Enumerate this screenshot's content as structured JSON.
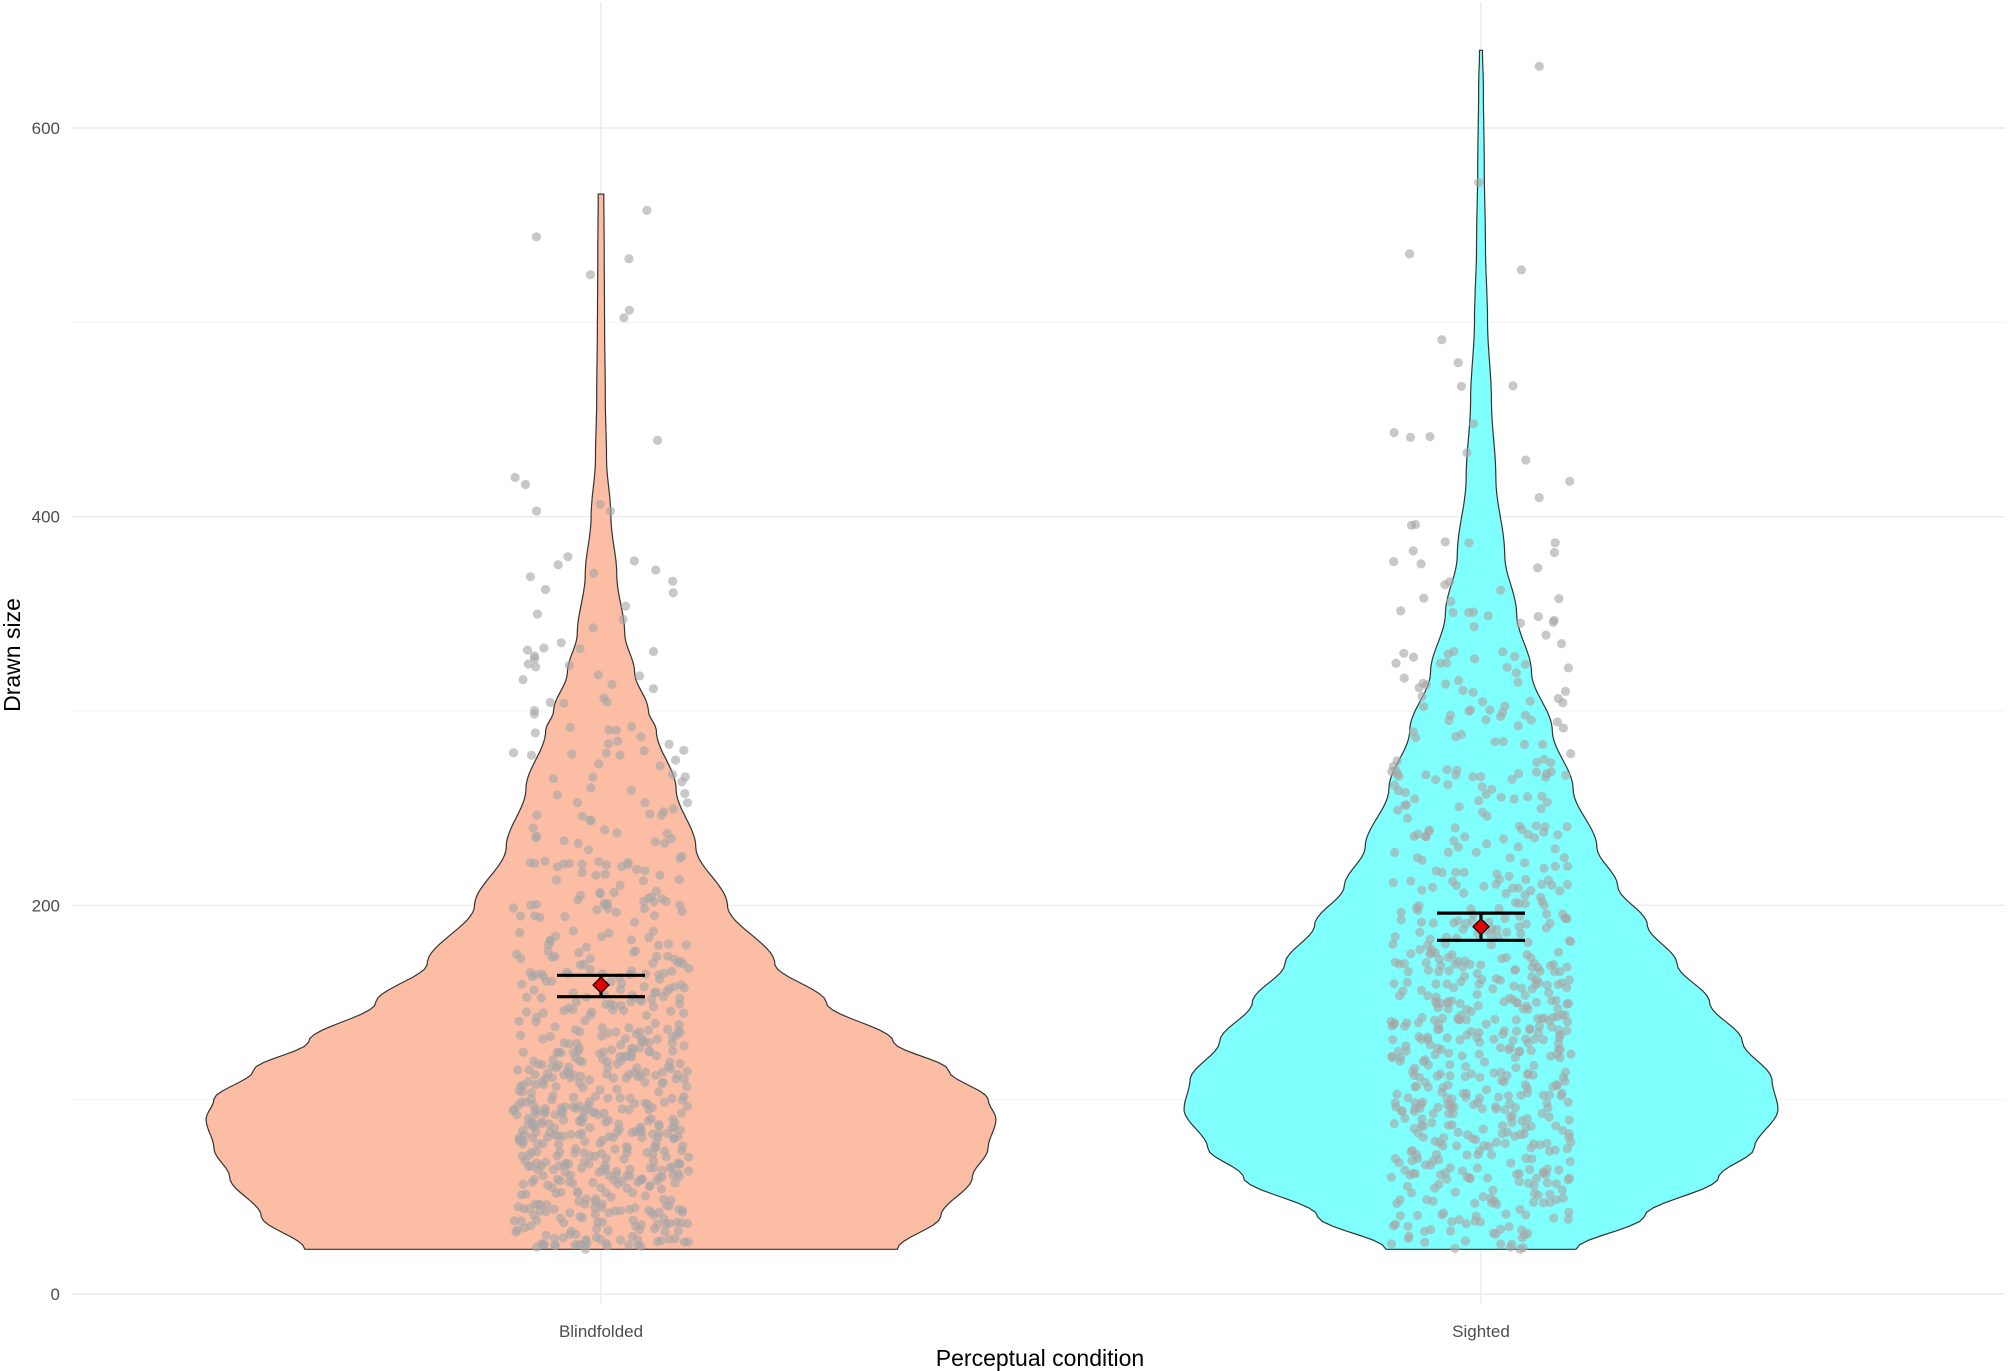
{
  "chart_data": {
    "type": "violin",
    "xlabel": "Perceptual condition",
    "ylabel": "Drawn size",
    "categories": [
      "Blindfolded",
      "Sighted"
    ],
    "ylim": [
      0,
      640
    ],
    "yticks": [
      0,
      200,
      400,
      600
    ],
    "grid": true,
    "colors": {
      "Blindfolded": "#fcbda5",
      "Sighted": "#80ffff",
      "points": "#a6a6a6",
      "mean": "#e00000"
    },
    "series": [
      {
        "category": "Blindfolded",
        "min": 23,
        "max": 566,
        "mean": 159,
        "ci_low": 153,
        "ci_high": 164,
        "density": [
          [
            23,
            0.75
          ],
          [
            40,
            0.86
          ],
          [
            60,
            0.94
          ],
          [
            75,
            0.98
          ],
          [
            90,
            1.0
          ],
          [
            100,
            0.98
          ],
          [
            115,
            0.88
          ],
          [
            130,
            0.74
          ],
          [
            150,
            0.57
          ],
          [
            170,
            0.44
          ],
          [
            200,
            0.32
          ],
          [
            230,
            0.24
          ],
          [
            260,
            0.19
          ],
          [
            290,
            0.14
          ],
          [
            300,
            0.12
          ],
          [
            320,
            0.085
          ],
          [
            340,
            0.06
          ],
          [
            370,
            0.04
          ],
          [
            400,
            0.025
          ],
          [
            430,
            0.014
          ],
          [
            460,
            0.011
          ],
          [
            500,
            0.009
          ],
          [
            540,
            0.008
          ],
          [
            566,
            0.007
          ]
        ]
      },
      {
        "category": "Sighted",
        "min": 23,
        "max": 640,
        "mean": 189,
        "ci_low": 182,
        "ci_high": 196,
        "density": [
          [
            23,
            0.32
          ],
          [
            40,
            0.55
          ],
          [
            60,
            0.8
          ],
          [
            75,
            0.92
          ],
          [
            95,
            1.0
          ],
          [
            110,
            0.98
          ],
          [
            130,
            0.88
          ],
          [
            150,
            0.77
          ],
          [
            170,
            0.66
          ],
          [
            190,
            0.56
          ],
          [
            210,
            0.46
          ],
          [
            230,
            0.39
          ],
          [
            260,
            0.31
          ],
          [
            290,
            0.24
          ],
          [
            320,
            0.17
          ],
          [
            350,
            0.12
          ],
          [
            380,
            0.08
          ],
          [
            420,
            0.05
          ],
          [
            460,
            0.035
          ],
          [
            500,
            0.022
          ],
          [
            540,
            0.015
          ],
          [
            580,
            0.011
          ],
          [
            620,
            0.008
          ],
          [
            640,
            0.005
          ]
        ]
      }
    ]
  }
}
